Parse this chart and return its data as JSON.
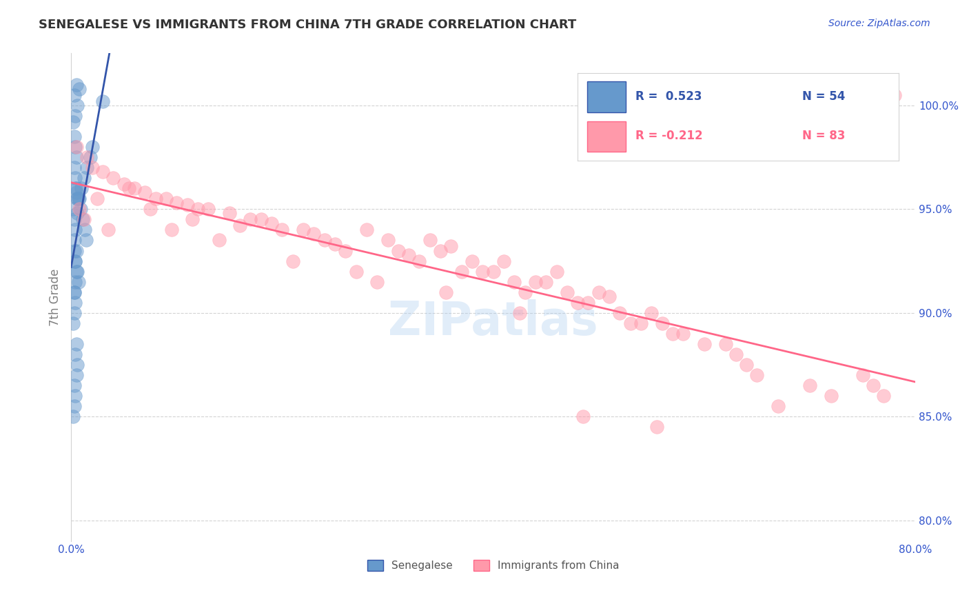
{
  "title": "SENEGALESE VS IMMIGRANTS FROM CHINA 7TH GRADE CORRELATION CHART",
  "source": "Source: ZipAtlas.com",
  "xlabel_bottom": "",
  "ylabel": "7th Grade",
  "x_bottom_label": "0.0%",
  "x_bottom_ticks": [
    "0.0%",
    "80.0%"
  ],
  "y_right_ticks": [
    "80.0%",
    "85.0%",
    "90.0%",
    "95.0%",
    "100.0%"
  ],
  "xlim": [
    0.0,
    80.0
  ],
  "ylim": [
    79.0,
    102.5
  ],
  "y_right_values": [
    80.0,
    85.0,
    90.0,
    95.0,
    100.0
  ],
  "blue_color": "#6699CC",
  "pink_color": "#FF99AA",
  "blue_line_color": "#3355AA",
  "pink_line_color": "#FF6688",
  "legend_blue_R": "R =  0.523",
  "legend_blue_N": "N = 54",
  "legend_pink_R": "R = -0.212",
  "legend_pink_N": "N = 83",
  "legend_label_blue": "Senegalese",
  "legend_label_pink": "Immigrants from China",
  "watermark": "ZIPatlas",
  "blue_x": [
    0.3,
    0.5,
    0.4,
    0.6,
    0.8,
    0.2,
    0.3,
    0.4,
    0.5,
    0.3,
    0.4,
    0.5,
    0.6,
    0.2,
    0.3,
    0.4,
    0.3,
    0.5,
    0.4,
    0.6,
    0.7,
    0.3,
    0.4,
    0.3,
    0.2,
    0.5,
    0.4,
    0.6,
    0.5,
    0.3,
    0.4,
    0.3,
    0.2,
    0.4,
    0.5,
    0.6,
    0.3,
    0.4,
    0.5,
    0.4,
    0.3,
    1.2,
    1.5,
    1.8,
    2.0,
    1.0,
    0.8,
    0.9,
    1.1,
    1.3,
    1.4,
    0.7,
    0.6,
    3.0
  ],
  "blue_y": [
    100.5,
    101.0,
    99.5,
    100.0,
    100.8,
    99.2,
    98.5,
    98.0,
    97.5,
    97.0,
    96.5,
    96.0,
    95.5,
    95.0,
    94.5,
    94.0,
    93.5,
    93.0,
    92.5,
    92.0,
    91.5,
    91.0,
    90.5,
    90.0,
    89.5,
    88.5,
    88.0,
    87.5,
    87.0,
    86.5,
    86.0,
    85.5,
    85.0,
    96.0,
    95.8,
    95.5,
    93.0,
    92.5,
    92.0,
    91.5,
    91.0,
    96.5,
    97.0,
    97.5,
    98.0,
    96.0,
    95.5,
    95.0,
    94.5,
    94.0,
    93.5,
    95.5,
    94.8,
    100.2
  ],
  "pink_x": [
    0.5,
    1.5,
    2.0,
    3.0,
    4.0,
    5.0,
    6.0,
    7.0,
    8.0,
    9.0,
    10.0,
    11.0,
    12.0,
    13.0,
    15.0,
    17.0,
    18.0,
    19.0,
    20.0,
    22.0,
    23.0,
    24.0,
    25.0,
    26.0,
    28.0,
    30.0,
    31.0,
    32.0,
    33.0,
    34.0,
    35.0,
    36.0,
    37.0,
    38.0,
    39.0,
    40.0,
    41.0,
    42.0,
    43.0,
    44.0,
    45.0,
    46.0,
    47.0,
    48.0,
    49.0,
    50.0,
    51.0,
    52.0,
    53.0,
    54.0,
    55.0,
    56.0,
    57.0,
    58.0,
    60.0,
    62.0,
    63.0,
    64.0,
    65.0,
    70.0,
    72.0,
    75.0,
    76.0,
    77.0,
    78.0,
    0.8,
    1.2,
    2.5,
    3.5,
    5.5,
    7.5,
    9.5,
    11.5,
    14.0,
    16.0,
    21.0,
    27.0,
    29.0,
    35.5,
    42.5,
    48.5,
    55.5,
    67.0
  ],
  "pink_y": [
    98.0,
    97.5,
    97.0,
    96.8,
    96.5,
    96.2,
    96.0,
    95.8,
    95.5,
    95.5,
    95.3,
    95.2,
    95.0,
    95.0,
    94.8,
    94.5,
    94.5,
    94.3,
    94.0,
    94.0,
    93.8,
    93.5,
    93.3,
    93.0,
    94.0,
    93.5,
    93.0,
    92.8,
    92.5,
    93.5,
    93.0,
    93.2,
    92.0,
    92.5,
    92.0,
    92.0,
    92.5,
    91.5,
    91.0,
    91.5,
    91.5,
    92.0,
    91.0,
    90.5,
    90.5,
    91.0,
    90.8,
    90.0,
    89.5,
    89.5,
    90.0,
    89.5,
    89.0,
    89.0,
    88.5,
    88.5,
    88.0,
    87.5,
    87.0,
    86.5,
    86.0,
    87.0,
    86.5,
    86.0,
    100.5,
    95.0,
    94.5,
    95.5,
    94.0,
    96.0,
    95.0,
    94.0,
    94.5,
    93.5,
    94.2,
    92.5,
    92.0,
    91.5,
    91.0,
    90.0,
    85.0,
    84.5,
    85.5
  ]
}
